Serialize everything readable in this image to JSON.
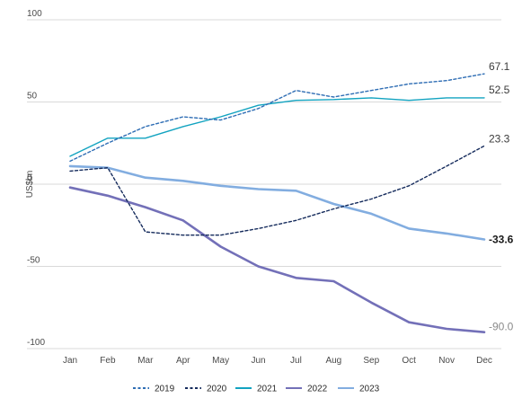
{
  "chart_data": {
    "type": "line",
    "title": "",
    "xlabel": "",
    "ylabel": "US$bn",
    "ylim": [
      -100,
      100
    ],
    "yticks": [
      -100,
      -50,
      0,
      50,
      100
    ],
    "categories": [
      "Jan",
      "Feb",
      "Mar",
      "Apr",
      "May",
      "Jun",
      "Jul",
      "Aug",
      "Sep",
      "Oct",
      "Nov",
      "Dec"
    ],
    "legend_position": "bottom",
    "grid": "horizontal",
    "series": [
      {
        "name": "2019",
        "color": "#2e6db4",
        "dash": "dashed",
        "values": [
          14,
          25,
          35,
          41,
          39,
          46,
          57,
          53,
          57,
          61,
          63,
          67.1
        ],
        "end_label": "67.1",
        "end_label_style": "normal"
      },
      {
        "name": "2020",
        "color": "#152b5c",
        "dash": "dashed",
        "values": [
          8,
          10,
          -29,
          -31,
          -31,
          -27,
          -22,
          -15,
          -9,
          -1,
          11,
          23.3
        ],
        "end_label": "23.3",
        "end_label_style": "normal"
      },
      {
        "name": "2021",
        "color": "#12a3c0",
        "dash": "solid",
        "values": [
          17,
          28,
          28,
          35,
          41,
          48,
          51,
          51.5,
          52.5,
          51,
          52.5,
          52.5
        ],
        "end_label": "52.5",
        "end_label_style": "normal"
      },
      {
        "name": "2022",
        "color": "#7370b8",
        "dash": "solid",
        "values": [
          -2,
          -7,
          -14,
          -22,
          -38,
          -50,
          -57,
          -59,
          -72,
          -84,
          -88,
          -90.0
        ],
        "end_label": "-90.0",
        "end_label_style": "faint"
      },
      {
        "name": "2023",
        "color": "#82ade0",
        "dash": "solid",
        "values": [
          11,
          10,
          4,
          2,
          -1,
          -3,
          -4,
          -12,
          -18,
          -27,
          -30,
          -33.6
        ],
        "end_label": "-33.6",
        "end_label_style": "bold"
      }
    ]
  }
}
